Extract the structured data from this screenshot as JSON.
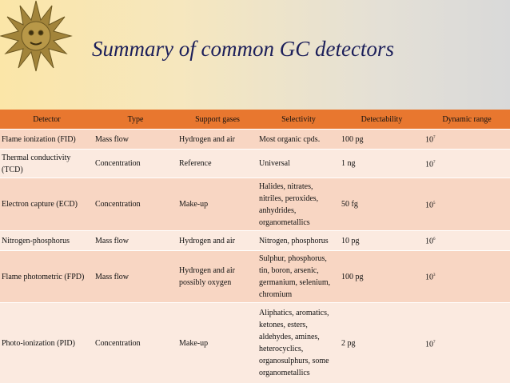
{
  "title": "Summary of common GC detectors",
  "table": {
    "header": [
      "Detector",
      "Type",
      "Support gases",
      "Selectivity",
      "Detectability",
      "Dynamic range"
    ],
    "rows": [
      [
        "Flame ionization (FID)",
        "Mass flow",
        "Hydrogen and air",
        "Most organic cpds.",
        "100 pg",
        {
          "base": "10",
          "exp": "7"
        }
      ],
      [
        "Thermal conductivity (TCD)",
        "Concentration",
        "Reference",
        "Universal",
        "1 ng",
        {
          "base": "10",
          "exp": "7"
        }
      ],
      [
        "Electron capture (ECD)",
        "Concentration",
        "Make-up",
        "Halides, nitrates, nitriles, peroxides, anhydrides, organometallics",
        "50 fg",
        {
          "base": "10",
          "exp": "5"
        }
      ],
      [
        "Nitrogen-phosphorus",
        "Mass flow",
        "Hydrogen and air",
        "Nitrogen, phosphorus",
        "10 pg",
        {
          "base": "10",
          "exp": "6"
        }
      ],
      [
        "Flame photometric (FPD)",
        "Mass flow",
        "Hydrogen and air possibly oxygen",
        "Sulphur, phosphorus, tin, boron, arsenic, germanium, selenium, chromium",
        "100 pg",
        {
          "base": "10",
          "exp": "3"
        }
      ],
      [
        "Photo-ionization (PID)",
        "Concentration",
        "Make-up",
        "Aliphatics, aromatics, ketones, esters, aldehydes, amines, heterocyclics, organosulphurs, some organometallics",
        "2 pg",
        {
          "base": "10",
          "exp": "7"
        }
      ]
    ]
  }
}
